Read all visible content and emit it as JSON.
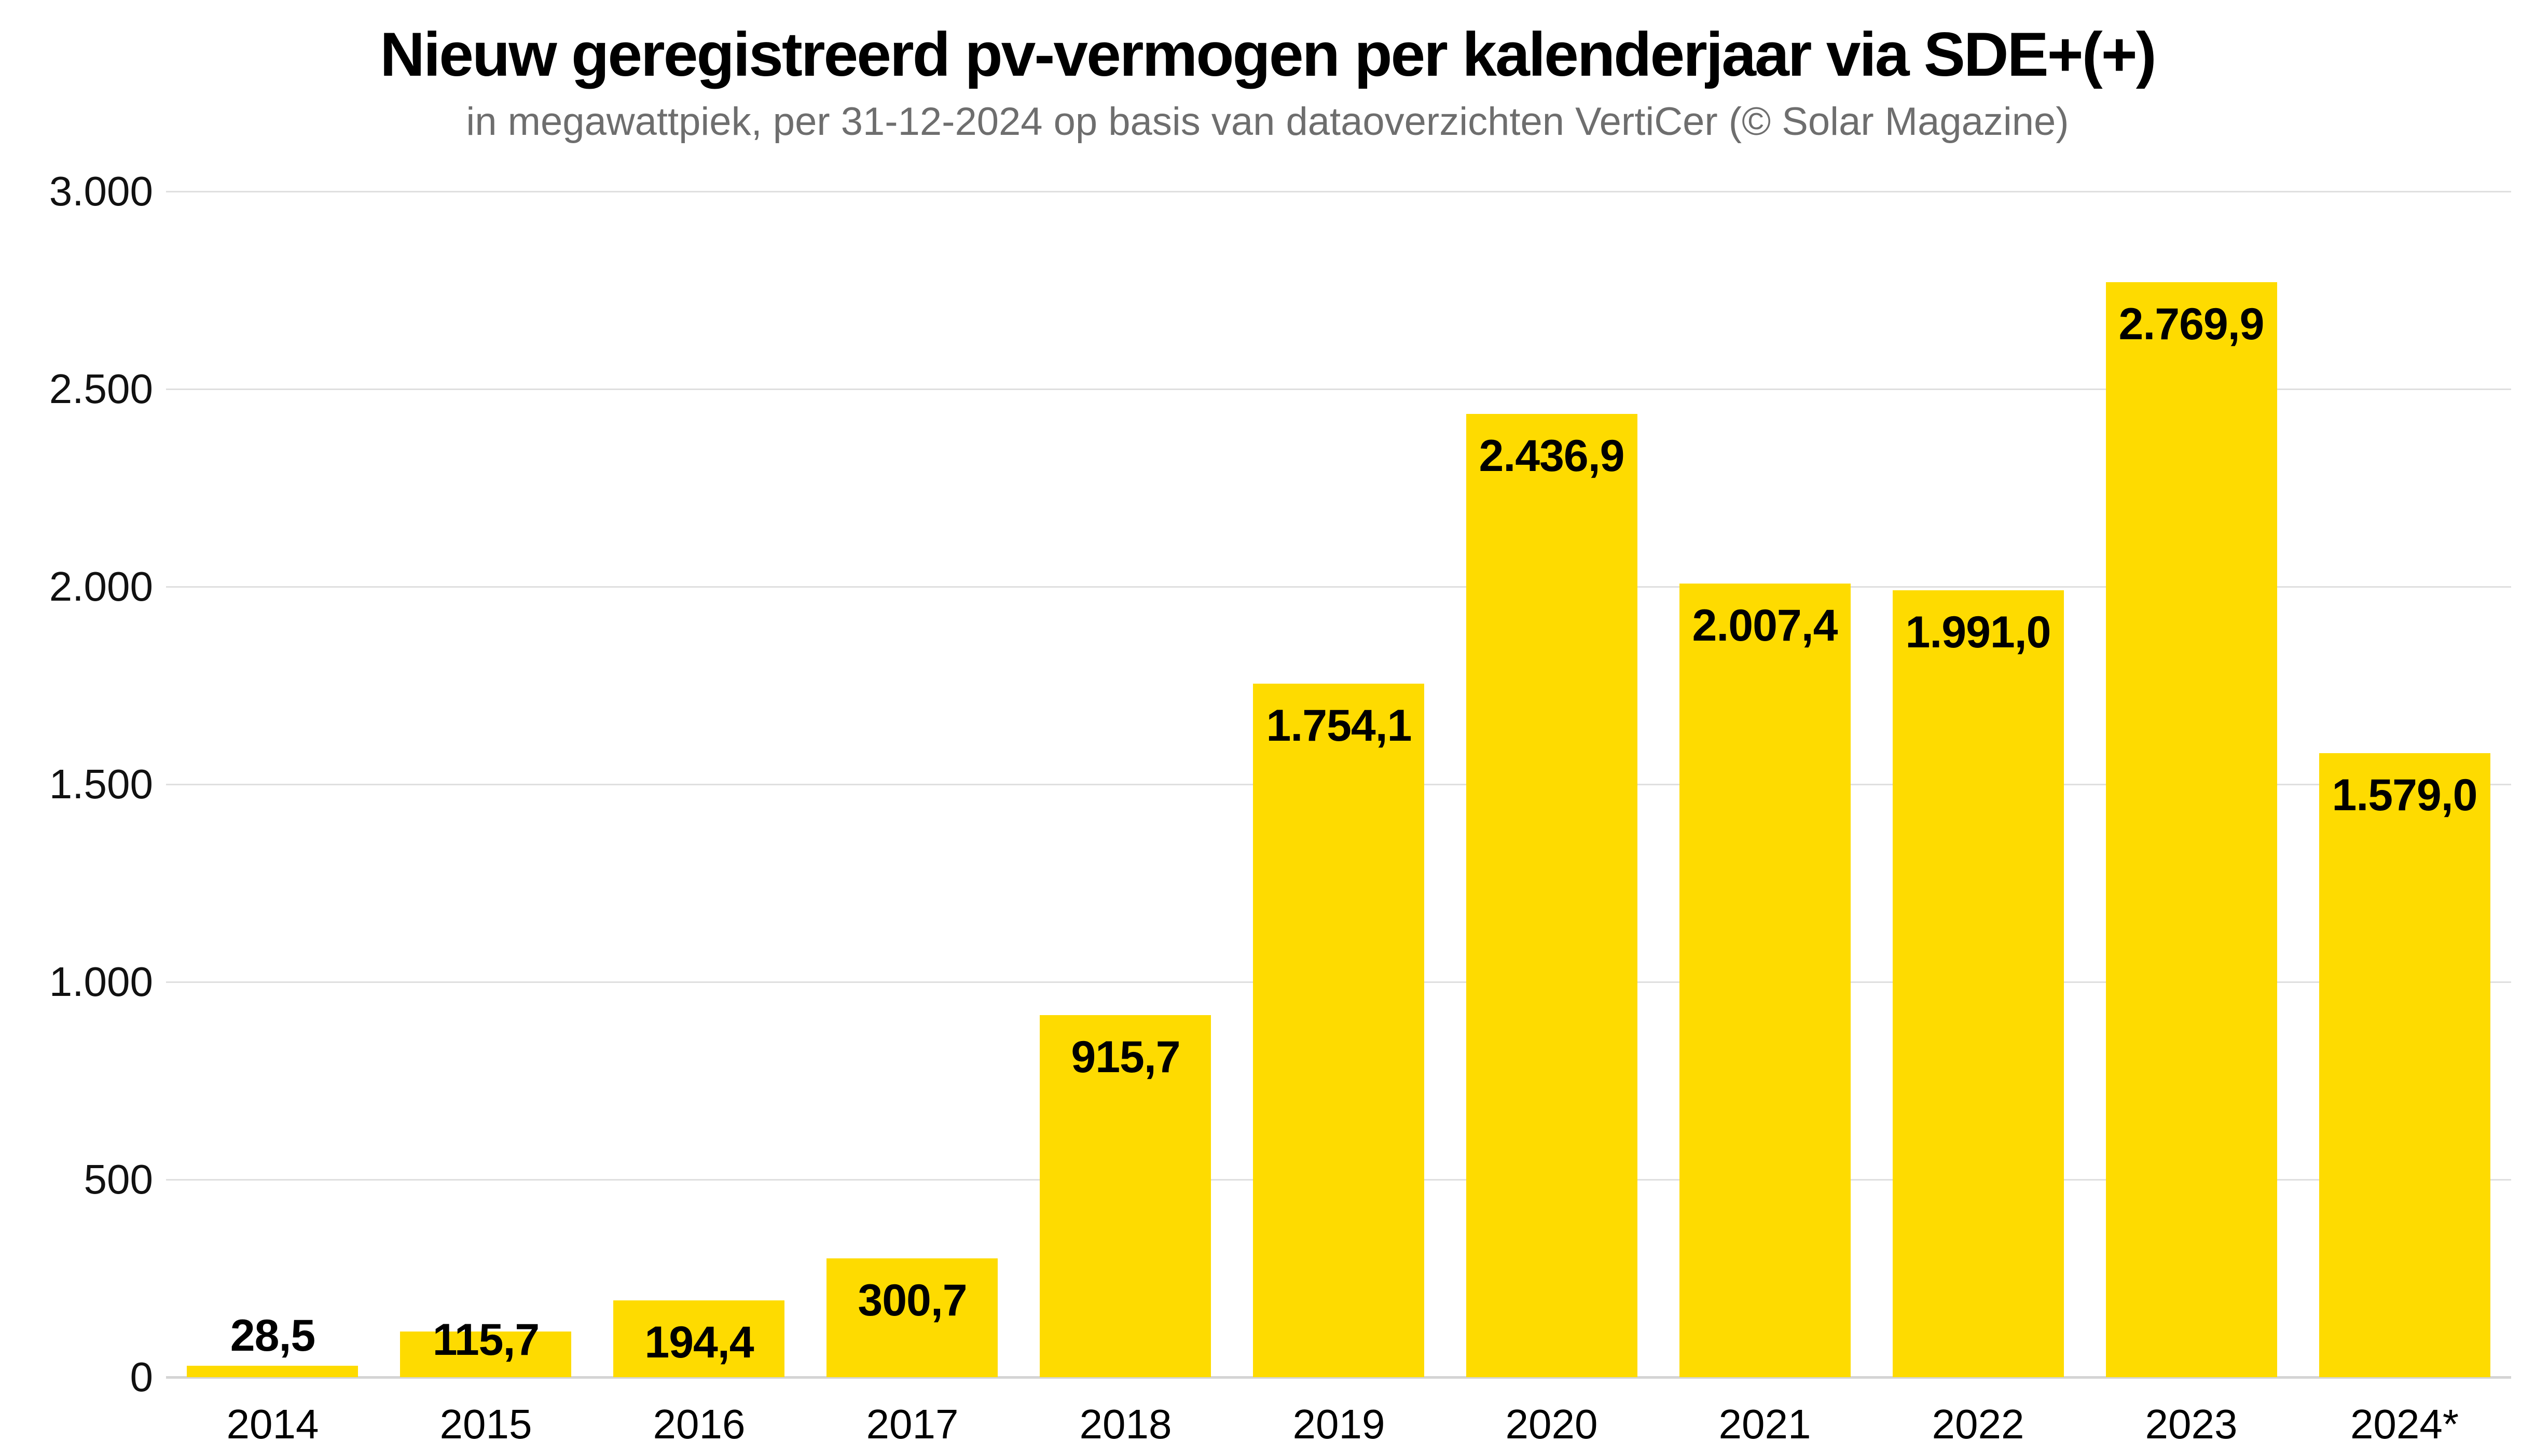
{
  "title": "Nieuw geregistreerd pv-vermogen per kalenderjaar via SDE+(+)",
  "subtitle": "in megawattpiek, per 31-12-2024 op basis van dataoverzichten VertiCer (© Solar Magazine)",
  "colors": {
    "bar": "#fedb00",
    "gridline": "#dfdfdf",
    "baseline": "#d4d4d4",
    "subtitle_text": "#6e6e6e",
    "label_text": "#000000"
  },
  "chart_data": {
    "type": "bar",
    "title": "Nieuw geregistreerd pv-vermogen per kalenderjaar via SDE+(+)",
    "subtitle": "in megawattpiek, per 31-12-2024 op basis van dataoverzichten VertiCer (© Solar Magazine)",
    "categories": [
      "2014",
      "2015",
      "2016",
      "2017",
      "2018",
      "2019",
      "2020",
      "2021",
      "2022",
      "2023",
      "2024*"
    ],
    "values": [
      28.5,
      115.7,
      194.4,
      300.7,
      915.7,
      1754.1,
      2436.9,
      2007.4,
      1991.0,
      2769.9,
      1579.0
    ],
    "value_labels": [
      "28,5",
      "115,7",
      "194,4",
      "300,7",
      "915,7",
      "1.754,1",
      "2.436,9",
      "2.007,4",
      "1.991,0",
      "2.769,9",
      "1.579,0"
    ],
    "xlabel": "",
    "ylabel": "",
    "ylim": [
      0,
      3000
    ],
    "ytick_values": [
      3000,
      2500,
      2000,
      1500,
      1000,
      500,
      0
    ],
    "ytick_labels": [
      "3.000",
      "2.500",
      "2.000",
      "1.500",
      "1.000",
      "500",
      "0"
    ],
    "grid": "horizontal",
    "legend": "none",
    "bar_color": "#fedb00"
  }
}
